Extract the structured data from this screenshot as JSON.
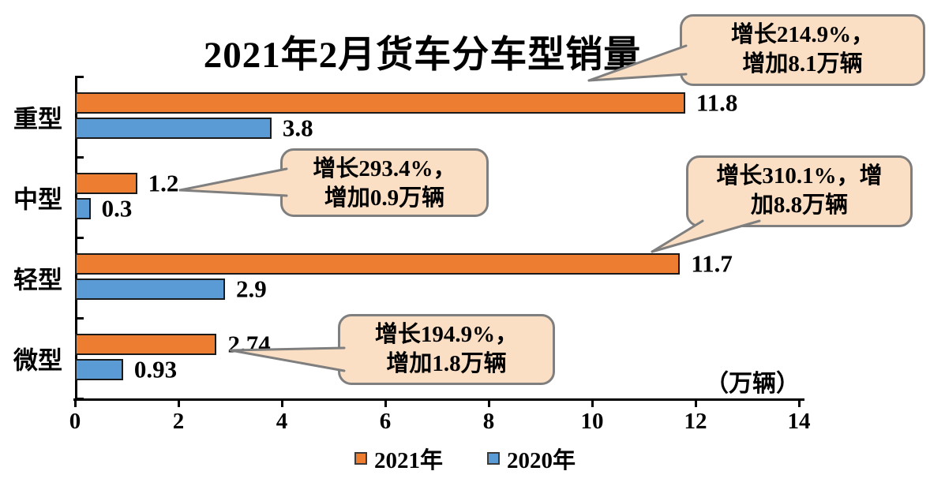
{
  "chart_data": {
    "type": "bar",
    "orientation": "horizontal",
    "title": "2021年2月货车分车型销量",
    "unit_label": "（万辆）",
    "categories": [
      "重型",
      "中型",
      "轻型",
      "微型"
    ],
    "series": [
      {
        "name": "2021年",
        "color": "#ED7D31",
        "values": [
          11.8,
          1.2,
          11.7,
          2.74
        ],
        "value_labels": [
          "11.8",
          "1.2",
          "11.7",
          "2.74"
        ]
      },
      {
        "name": "2020年",
        "color": "#5B9BD5",
        "values": [
          3.8,
          0.3,
          2.9,
          0.93
        ],
        "value_labels": [
          "3.8",
          "0.3",
          "2.9",
          "0.93"
        ]
      }
    ],
    "xlim": [
      0,
      14
    ],
    "x_ticks": [
      "0",
      "2",
      "4",
      "6",
      "8",
      "10",
      "12",
      "14"
    ],
    "grid": false,
    "legend_position": "bottom-center",
    "annotations": [
      {
        "target_category": "重型",
        "target_series": "2021年",
        "lines": [
          "增长214.9%，",
          "增加8.1万辆"
        ]
      },
      {
        "target_category": "中型",
        "target_series": "2021年",
        "lines": [
          "增长293.4%，",
          "增加0.9万辆"
        ]
      },
      {
        "target_category": "轻型",
        "target_series": "2021年",
        "lines": [
          "增长310.1%，增",
          "加8.8万辆"
        ]
      },
      {
        "target_category": "微型",
        "target_series": "2021年",
        "lines": [
          "增长194.9%，",
          "增加1.8万辆"
        ]
      }
    ]
  },
  "legend": [
    {
      "label": "2021年",
      "swatch_color": "#ED7D31"
    },
    {
      "label": "2020年",
      "swatch_color": "#5B9BD5"
    }
  ],
  "colors": {
    "bar_2021": "#ED7D31",
    "bar_2020": "#5B9BD5",
    "bar_border": "#1A1A1A",
    "axis": "#000000",
    "callout_fill": "#FBDFC4",
    "callout_border": "#7F7F7F",
    "text": "#000000",
    "background": "#FFFFFF"
  }
}
